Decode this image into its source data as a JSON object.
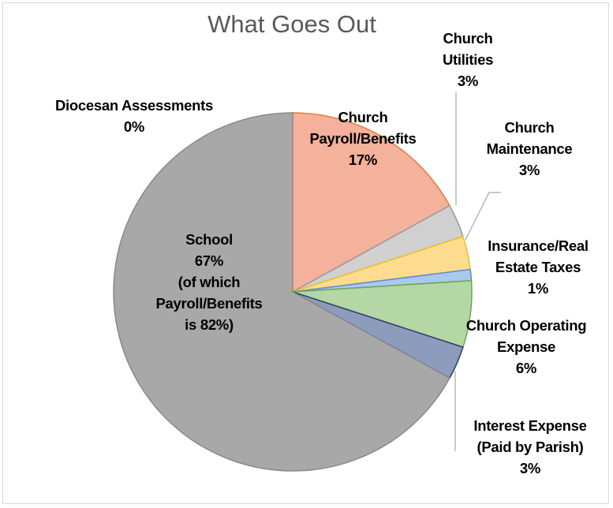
{
  "chart_data": {
    "type": "pie",
    "title": "What Goes Out",
    "slices": [
      {
        "label_lines": [
          "Church",
          "Payroll/Benefits",
          "17%"
        ],
        "value": 17,
        "color": "#f4b19b",
        "stroke": "#e97b34"
      },
      {
        "label_lines": [
          "Church",
          "Utilities",
          "3%"
        ],
        "value": 3,
        "color": "#d0d0d0",
        "stroke": "#9a9a9a"
      },
      {
        "label_lines": [
          "Church",
          "Maintenance",
          "3%"
        ],
        "value": 3,
        "color": "#fedc8f",
        "stroke": "#f1bf1a"
      },
      {
        "label_lines": [
          "Insurance/Real",
          "Estate Taxes",
          "1%"
        ],
        "value": 1,
        "color": "#a9c9ee",
        "stroke": "#5b8bd0"
      },
      {
        "label_lines": [
          "Church Operating",
          "Expense",
          "6%"
        ],
        "value": 6,
        "color": "#b5d6a5",
        "stroke": "#6ba84f"
      },
      {
        "label_lines": [
          "Interest Expense",
          "(Paid by Parish)",
          "3%"
        ],
        "value": 3,
        "color": "#8d9bbd",
        "stroke": "#2f3d6b"
      },
      {
        "label_lines": [
          "School",
          "67%",
          "(of which",
          "Payroll/Benefits",
          "is 82%)"
        ],
        "value": 67,
        "color": "#a8a8a8",
        "stroke": "#8a8a8a"
      },
      {
        "label_lines": [
          "Diocesan Assessments",
          "0%"
        ],
        "value": 0,
        "color": "#bcbcbc",
        "stroke": "#8a8a8a"
      }
    ],
    "legend": "none"
  }
}
